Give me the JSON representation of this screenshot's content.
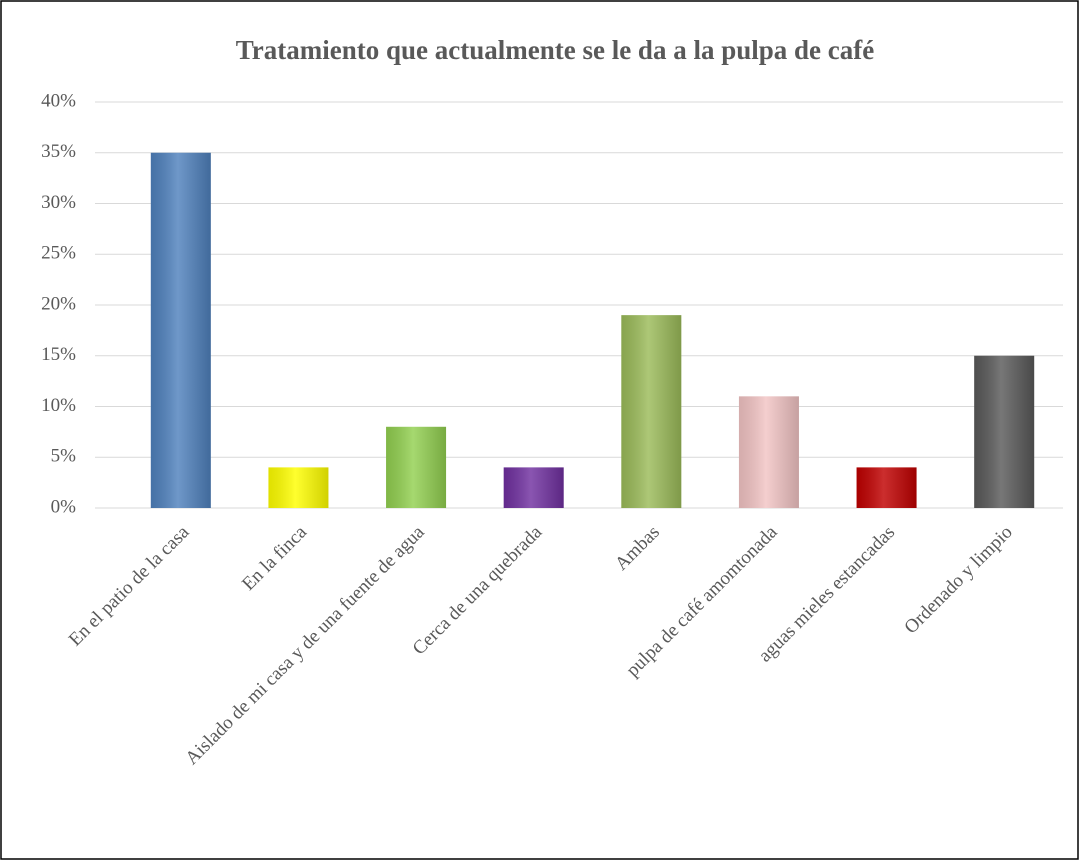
{
  "chart_data": {
    "type": "bar",
    "title": "Tratamiento que actualmente se le da  a la pulpa de café",
    "categories": [
      "En el patio de la casa",
      "En la finca",
      "Aislado de mi casa y de una fuente de agua",
      "Cerca de una quebrada",
      "Ambas",
      "pulpa de café amomtonada",
      "aguas mieles estancadas",
      "Ordenado y limpio"
    ],
    "values": [
      35,
      4,
      8,
      4,
      19,
      11,
      4,
      15
    ],
    "colors": [
      "#4f81bd",
      "#ffff00",
      "#92d050",
      "#7030a0",
      "#9bbb59",
      "#f2c4c4",
      "#c00000",
      "#595959"
    ],
    "ylim": [
      0,
      40
    ],
    "yticks": [
      {
        "value": 0,
        "label": "0%"
      },
      {
        "value": 5,
        "label": "5%"
      },
      {
        "value": 10,
        "label": "10%"
      },
      {
        "value": 15,
        "label": "15%"
      },
      {
        "value": 20,
        "label": "20%"
      },
      {
        "value": 25,
        "label": "25%"
      },
      {
        "value": 30,
        "label": "30%"
      },
      {
        "value": 35,
        "label": "35%"
      },
      {
        "value": 40,
        "label": "40%"
      }
    ],
    "grid": true
  }
}
